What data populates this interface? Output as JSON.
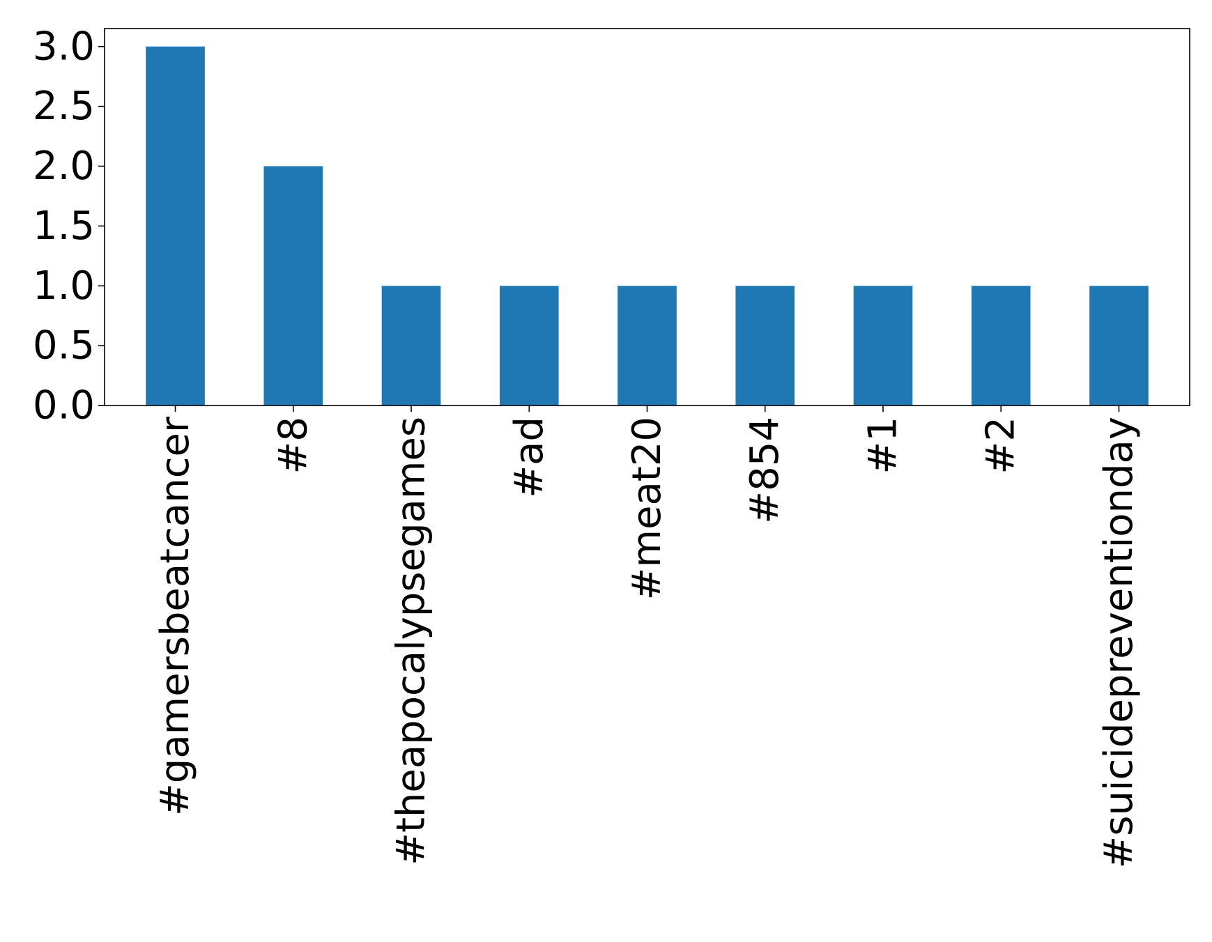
{
  "chart_data": {
    "type": "bar",
    "categories": [
      "#gamersbeatcancer",
      "#8",
      "#theapocalypsegames",
      "#ad",
      "#meat20",
      "#854",
      "#1",
      "#2",
      "#suicidepreventionday"
    ],
    "values": [
      3,
      2,
      1,
      1,
      1,
      1,
      1,
      1,
      1
    ],
    "y_ticks": [
      "0.0",
      "0.5",
      "1.0",
      "1.5",
      "2.0",
      "2.5",
      "3.0"
    ],
    "ylim": [
      0,
      3.15
    ],
    "title": "",
    "xlabel": "",
    "ylabel": "",
    "grid": false,
    "legend": false,
    "bar_color": "#1f77b4",
    "axis_color": "#000000"
  }
}
